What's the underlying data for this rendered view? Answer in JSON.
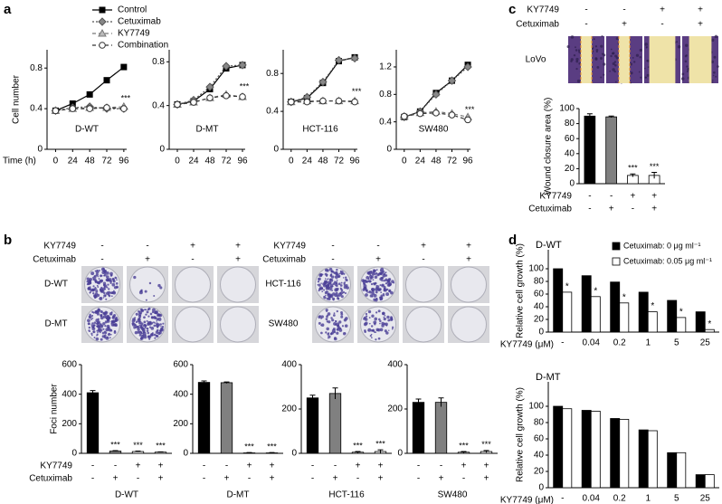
{
  "panel_labels": [
    "a",
    "b",
    "c",
    "d"
  ],
  "image_panels": {
    "b": [
      {
        "sign_row_labels": [
          "KY7749",
          "Cetuximab"
        ],
        "sign_rows": [
          [
            "-",
            "-",
            "+",
            "+"
          ],
          [
            "-",
            "+",
            "-",
            "+"
          ]
        ],
        "row_labels": [
          "D-WT",
          "D-MT"
        ]
      },
      {
        "sign_row_labels": [
          "KY7749",
          "Cetuximab"
        ],
        "sign_rows": [
          [
            "-",
            "-",
            "+",
            "+"
          ],
          [
            "-",
            "+",
            "-",
            "+"
          ]
        ],
        "row_labels": [
          "HCT-116",
          "SW480"
        ]
      }
    ],
    "c": {
      "sign_row_labels": [
        "KY7749",
        "Cetuximab"
      ],
      "sign_rows": [
        [
          "-",
          "-",
          "+",
          "+"
        ],
        [
          "-",
          "+",
          "-",
          "+"
        ]
      ],
      "row_labels": [
        "LoVo"
      ]
    }
  },
  "chart_data": [
    {
      "type": "line",
      "ylabel": "Cell number",
      "xlabel": "Time (h)",
      "label": "D-WT",
      "annotation": "***",
      "x": [
        0,
        24,
        48,
        72,
        96
      ],
      "xlim": [
        -12,
        100
      ],
      "xticks": [
        0,
        24,
        48,
        72,
        96
      ],
      "ylim": [
        0,
        0.98
      ],
      "yticks": [
        0,
        0.4,
        0.8
      ],
      "series": [
        {
          "name": "Control",
          "color": "#000000",
          "fill": "#000000",
          "marker": "square",
          "dash": "none",
          "values": [
            0.38,
            0.45,
            0.54,
            0.68,
            0.81
          ]
        },
        {
          "name": "Cetuximab",
          "color": "#555555",
          "fill": "#888888",
          "marker": "diamond",
          "dash": "2,2",
          "values": [
            0.38,
            0.41,
            0.42,
            0.4,
            0.4
          ]
        },
        {
          "name": "KY7749",
          "color": "#777777",
          "fill": "#bbbbbb",
          "marker": "triangle",
          "dash": "4,3",
          "values": [
            0.38,
            0.4,
            0.41,
            0.41,
            0.42
          ]
        },
        {
          "name": "Combination",
          "color": "#333333",
          "fill": "#ffffff",
          "marker": "circle",
          "dash": "4,3",
          "values": [
            0.38,
            0.4,
            0.4,
            0.41,
            0.4
          ]
        }
      ]
    },
    {
      "type": "line",
      "label": "D-MT",
      "annotation": "***",
      "x": [
        0,
        24,
        48,
        72,
        96
      ],
      "xlim": [
        -12,
        100
      ],
      "xticks": [
        0,
        24,
        48,
        72,
        96
      ],
      "ylim": [
        0,
        0.91
      ],
      "yticks": [
        0,
        0.4,
        0.8
      ],
      "series": [
        {
          "color": "#000000",
          "fill": "#000000",
          "marker": "square",
          "dash": "none",
          "values": [
            0.41,
            0.44,
            0.55,
            0.74,
            0.77
          ]
        },
        {
          "color": "#555555",
          "fill": "#888888",
          "marker": "diamond",
          "dash": "2,2",
          "values": [
            0.41,
            0.45,
            0.57,
            0.76,
            0.77
          ]
        },
        {
          "color": "#777777",
          "fill": "#bbbbbb",
          "marker": "triangle",
          "dash": "4,3",
          "values": [
            0.41,
            0.43,
            0.47,
            0.5,
            0.48
          ]
        },
        {
          "color": "#333333",
          "fill": "#ffffff",
          "marker": "circle",
          "dash": "4,3",
          "values": [
            0.41,
            0.43,
            0.47,
            0.49,
            0.48
          ]
        }
      ]
    },
    {
      "type": "line",
      "label": "HCT-116",
      "annotation": "***",
      "x": [
        0,
        24,
        48,
        72,
        96
      ],
      "xlim": [
        -12,
        100
      ],
      "xticks": [
        0,
        24,
        48,
        72,
        96
      ],
      "ylim": [
        0,
        1.05
      ],
      "yticks": [
        0,
        0.4,
        0.8
      ],
      "series": [
        {
          "color": "#000000",
          "fill": "#000000",
          "marker": "square",
          "dash": "none",
          "values": [
            0.5,
            0.54,
            0.7,
            0.93,
            0.97
          ]
        },
        {
          "color": "#555555",
          "fill": "#888888",
          "marker": "diamond",
          "dash": "2,2",
          "values": [
            0.5,
            0.55,
            0.71,
            0.94,
            0.96
          ]
        },
        {
          "color": "#777777",
          "fill": "#bbbbbb",
          "marker": "triangle",
          "dash": "4,3",
          "values": [
            0.5,
            0.51,
            0.51,
            0.51,
            0.51
          ]
        },
        {
          "color": "#333333",
          "fill": "#ffffff",
          "marker": "circle",
          "dash": "4,3",
          "values": [
            0.5,
            0.5,
            0.51,
            0.51,
            0.5
          ]
        }
      ]
    },
    {
      "type": "line",
      "label": "SW480",
      "annotation": "***",
      "x": [
        0,
        24,
        48,
        72,
        96
      ],
      "xlim": [
        -12,
        100
      ],
      "xticks": [
        0,
        24,
        48,
        72,
        96
      ],
      "ylim": [
        0,
        1.45
      ],
      "yticks": [
        0,
        0.4,
        0.8,
        1.2
      ],
      "series": [
        {
          "color": "#000000",
          "fill": "#000000",
          "marker": "square",
          "dash": "none",
          "values": [
            0.47,
            0.55,
            0.82,
            1.0,
            1.23
          ]
        },
        {
          "color": "#555555",
          "fill": "#888888",
          "marker": "diamond",
          "dash": "2,2",
          "values": [
            0.47,
            0.55,
            0.8,
            1.0,
            1.2
          ]
        },
        {
          "color": "#777777",
          "fill": "#bbbbbb",
          "marker": "triangle",
          "dash": "4,3",
          "values": [
            0.48,
            0.53,
            0.55,
            0.52,
            0.47
          ]
        },
        {
          "color": "#333333",
          "fill": "#ffffff",
          "marker": "circle",
          "dash": "4,3",
          "values": [
            0.48,
            0.52,
            0.53,
            0.5,
            0.43
          ]
        }
      ]
    },
    {
      "type": "bar",
      "ylabel": "Wound closure area (%)",
      "ylim": [
        0,
        100
      ],
      "yticks": [
        0,
        20,
        40,
        60,
        80,
        100
      ],
      "values": [
        90,
        89,
        11,
        11
      ],
      "errors": [
        3,
        1,
        2,
        4
      ],
      "colors": [
        "#000000",
        "#808080",
        "#ffffff",
        "#ffffff"
      ],
      "stars": [
        null,
        null,
        "***",
        "***"
      ],
      "sign_row_labels": [
        "KY7749",
        "Cetuximab"
      ],
      "sign_rows": [
        [
          "-",
          "-",
          "+",
          "+"
        ],
        [
          "-",
          "+",
          "-",
          "+"
        ]
      ]
    },
    {
      "type": "bar",
      "ylabel": "Foci number",
      "xlabel": "D-WT",
      "ylim": [
        0,
        600
      ],
      "yticks": [
        0,
        200,
        400,
        600
      ],
      "values": [
        410,
        15,
        12,
        8
      ],
      "errors": [
        15,
        3,
        3,
        2
      ],
      "colors": [
        "#000000",
        "#808080",
        "#ffffff",
        "#ffffff"
      ],
      "stars": [
        null,
        "***",
        "***",
        "***"
      ],
      "sign_row_labels": [
        "KY7749",
        "Cetuximab"
      ],
      "sign_rows": [
        [
          "-",
          "-",
          "+",
          "+"
        ],
        [
          "-",
          "+",
          "-",
          "+"
        ]
      ]
    },
    {
      "type": "bar",
      "xlabel": "D-MT",
      "ylim": [
        0,
        600
      ],
      "yticks": [
        0,
        200,
        400,
        600
      ],
      "values": [
        480,
        478,
        3,
        3
      ],
      "errors": [
        10,
        5,
        2,
        2
      ],
      "colors": [
        "#000000",
        "#808080",
        "#ffffff",
        "#ffffff"
      ],
      "stars": [
        null,
        null,
        "***",
        "***"
      ],
      "sign_rows": [
        [
          "-",
          "-",
          "+",
          "+"
        ],
        [
          "-",
          "+",
          "-",
          "+"
        ]
      ]
    },
    {
      "type": "bar",
      "xlabel": "HCT-116",
      "ylim": [
        0,
        400
      ],
      "yticks": [
        0,
        200,
        400
      ],
      "values": [
        250,
        270,
        5,
        8
      ],
      "errors": [
        12,
        25,
        3,
        8
      ],
      "colors": [
        "#000000",
        "#808080",
        "#ffffff",
        "#ffffff"
      ],
      "stars": [
        null,
        null,
        "***",
        "***"
      ],
      "sign_rows": [
        [
          "-",
          "-",
          "+",
          "+"
        ],
        [
          "-",
          "+",
          "-",
          "+"
        ]
      ]
    },
    {
      "type": "bar",
      "xlabel": "SW480",
      "ylim": [
        0,
        400
      ],
      "yticks": [
        0,
        200,
        400
      ],
      "values": [
        230,
        230,
        5,
        8
      ],
      "errors": [
        15,
        20,
        3,
        5
      ],
      "colors": [
        "#000000",
        "#808080",
        "#ffffff",
        "#ffffff"
      ],
      "stars": [
        null,
        null,
        "***",
        "***"
      ],
      "sign_rows": [
        [
          "-",
          "-",
          "+",
          "+"
        ],
        [
          "-",
          "+",
          "-",
          "+"
        ]
      ]
    },
    {
      "type": "grouped_bar",
      "title": "D-WT",
      "ylabel": "Relative cell growth (%)",
      "xlabel": "KY7749 (μM)",
      "categories": [
        "-",
        "0.04",
        "0.2",
        "1",
        "5",
        "25"
      ],
      "ylim": [
        0,
        130
      ],
      "yticks": [
        0,
        20,
        40,
        60,
        80,
        100
      ],
      "series": [
        {
          "name": "Cetuximab: 0 μg ml⁻¹",
          "color": "#000000",
          "values": [
            100,
            89,
            79,
            63,
            50,
            32
          ]
        },
        {
          "name": "Cetuximab: 0.05 μg ml⁻¹",
          "color": "#ffffff",
          "values": [
            63,
            56,
            46,
            32,
            23,
            4
          ],
          "stars": [
            "*",
            "*",
            "*",
            "*",
            "*",
            "*"
          ]
        }
      ]
    },
    {
      "type": "grouped_bar",
      "title": "D-MT",
      "ylabel": "Relative cell growth (%)",
      "xlabel": "KY7749 (μM)",
      "categories": [
        "-",
        "0.04",
        "0.2",
        "1",
        "5",
        "25"
      ],
      "ylim": [
        0,
        130
      ],
      "yticks": [
        0,
        20,
        40,
        60,
        80,
        100
      ],
      "series": [
        {
          "color": "#000000",
          "values": [
            100,
            95,
            85,
            71,
            43,
            16
          ]
        },
        {
          "color": "#ffffff",
          "values": [
            97,
            94,
            84,
            70,
            43,
            16
          ]
        }
      ]
    }
  ]
}
